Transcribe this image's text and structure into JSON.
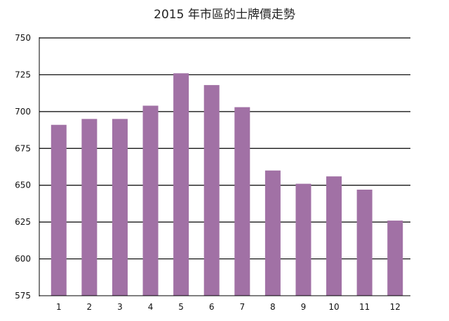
{
  "chart_data": {
    "type": "bar",
    "title": "2015 年市區的士牌價走勢",
    "xlabel": "",
    "ylabel": "",
    "categories": [
      "1",
      "2",
      "3",
      "4",
      "5",
      "6",
      "7",
      "8",
      "9",
      "10",
      "11",
      "12"
    ],
    "values": [
      691,
      695,
      695,
      704,
      726,
      718,
      703,
      660,
      651,
      656,
      647,
      626
    ],
    "ylim": [
      575,
      750
    ],
    "yticks": [
      "575",
      "600",
      "625",
      "650",
      "675",
      "700",
      "725",
      "750"
    ],
    "grid": true,
    "legend": "none",
    "bar_color": "#a171a5",
    "grid_color": "#000000"
  }
}
